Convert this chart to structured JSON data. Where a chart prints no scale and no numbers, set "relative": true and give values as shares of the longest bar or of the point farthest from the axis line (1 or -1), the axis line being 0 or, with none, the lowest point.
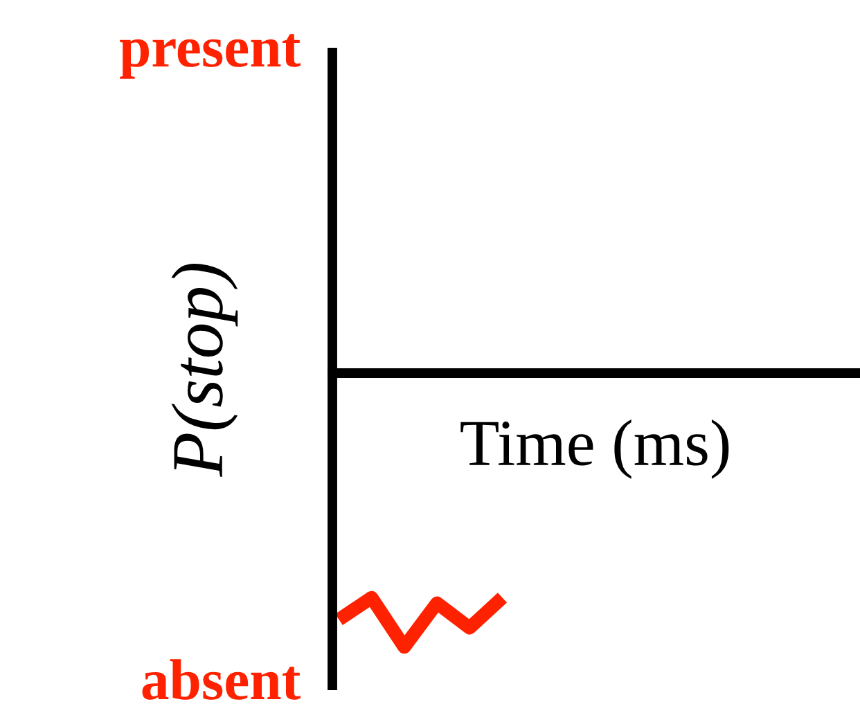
{
  "chart_data": {
    "type": "line",
    "relative": true,
    "xlabel": "Time (ms)",
    "ylabel": "P(stop)",
    "categories": [
      null,
      null,
      null,
      null,
      null,
      null
    ],
    "series": [
      {
        "color": "#ff2200",
        "values": [
          -0.9,
          -0.82,
          -1,
          -0.84,
          -0.93,
          -0.82
        ]
      }
    ],
    "annotations": [
      "present",
      "absent"
    ],
    "grid": false
  }
}
